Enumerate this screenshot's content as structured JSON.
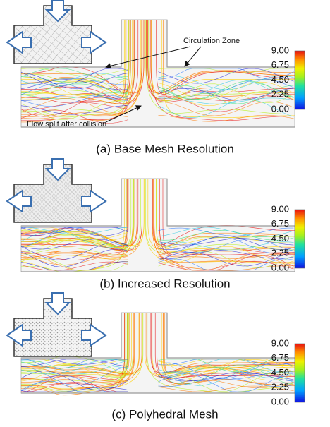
{
  "panels": [
    {
      "caption": "(a) Base Mesh Resolution",
      "colorbar_ticks": [
        "9.00",
        "6.75",
        "4.50",
        "2.25",
        "0.00"
      ],
      "annotations": [
        "Circulation Zone",
        "Flow split after collision"
      ]
    },
    {
      "caption": "(b) Increased Resolution",
      "colorbar_ticks": [
        "9.00",
        "6.75",
        "4.50",
        "2.25",
        "0.00"
      ]
    },
    {
      "caption": "(c) Polyhedral Mesh",
      "colorbar_ticks": [
        "9.00",
        "6.75",
        "4.50",
        "2.25",
        "0.00"
      ]
    }
  ]
}
